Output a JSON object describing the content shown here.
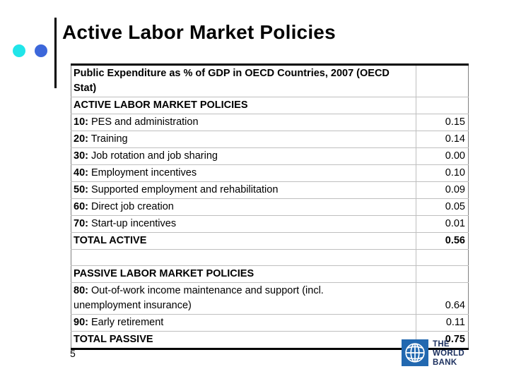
{
  "slide": {
    "title": "Active Labor Market Policies",
    "page_number": "5"
  },
  "colors": {
    "bullet_cyan": "#21e5e9",
    "bullet_blue": "#3c67da",
    "logo_blue": "#2268b0",
    "logo_text": "#1b2f5e",
    "grid_line": "#bfbfbf",
    "table_border": "#000000"
  },
  "table": {
    "rows": [
      {
        "text": "Public Expenditure as % of GDP in OECD Countries, 2007 (OECD\nStat)",
        "value": "",
        "bold": true
      },
      {
        "text": "ACTIVE LABOR MARKET POLICIES",
        "value": "",
        "bold": true
      },
      {
        "prefix": "10:",
        "text": "PES and administration",
        "value": "0.15",
        "bold": false
      },
      {
        "prefix": "20:",
        "text": "Training",
        "value": "0.14",
        "bold": false
      },
      {
        "prefix": "30:",
        "text": "Job rotation and job sharing",
        "value": "0.00",
        "bold": false
      },
      {
        "prefix": "40:",
        "text": "Employment incentives",
        "value": "0.10",
        "bold": false
      },
      {
        "prefix": "50:",
        "text": "Supported employment and rehabilitation",
        "value": "0.09",
        "bold": false
      },
      {
        "prefix": "60:",
        "text": "Direct job creation",
        "value": "0.05",
        "bold": false
      },
      {
        "prefix": "70:",
        "text": "Start-up incentives",
        "value": "0.01",
        "bold": false
      },
      {
        "text": "TOTAL ACTIVE",
        "value": "0.56",
        "bold": true
      },
      {
        "text": "",
        "value": "",
        "bold": false
      },
      {
        "text": "PASSIVE LABOR MARKET POLICIES",
        "value": "",
        "bold": true
      },
      {
        "prefix": "80:",
        "text": "Out-of-work income maintenance and support (incl.\nunemployment insurance)",
        "value": "0.64",
        "bold": false
      },
      {
        "prefix": "90:",
        "text": "Early retirement",
        "value": "0.11",
        "bold": false
      },
      {
        "text": "TOTAL PASSIVE",
        "value": "0.75",
        "bold": true
      }
    ]
  },
  "logo": {
    "line1": "THE",
    "line2": "WORLD",
    "line3": "BANK"
  }
}
